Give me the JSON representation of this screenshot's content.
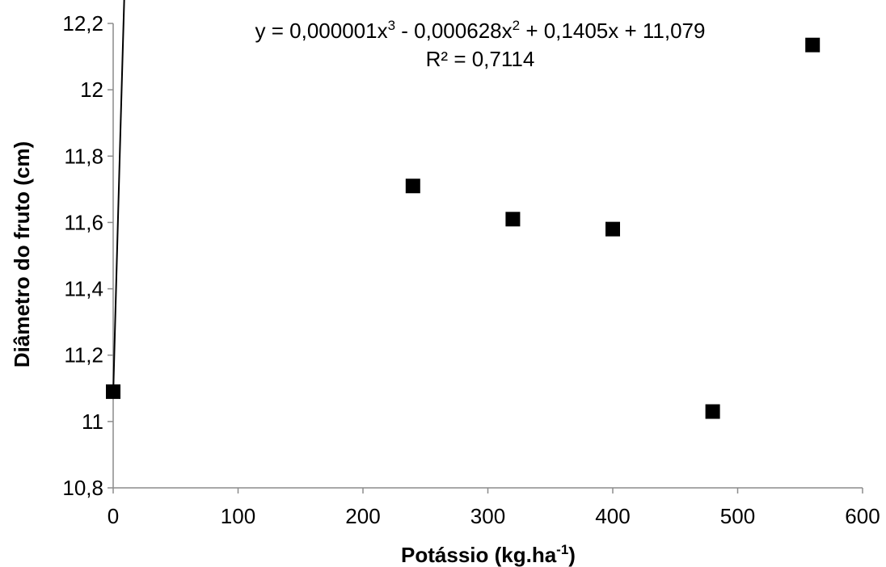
{
  "chart_data": {
    "type": "scatter",
    "xlabel": "Potássio (kg.ha",
    "xlabel_sup": "-1",
    "xlabel_end": ")",
    "ylabel": "Diâmetro do fruto (cm)",
    "xlim": [
      0,
      600
    ],
    "ylim": [
      10.8,
      12.2
    ],
    "x_ticks": [
      0,
      100,
      200,
      300,
      400,
      500,
      600
    ],
    "x_tick_labels": [
      "0",
      "100",
      "200",
      "300",
      "400",
      "500",
      "600"
    ],
    "y_ticks": [
      10.8,
      11.0,
      11.2,
      11.4,
      11.6,
      11.8,
      12.0,
      12.2
    ],
    "y_tick_labels": [
      "10,8",
      "11",
      "11,2",
      "11,4",
      "11,6",
      "11,8",
      "12",
      "12,2"
    ],
    "grid": false,
    "points": [
      {
        "x": 0,
        "y": 11.09
      },
      {
        "x": 240,
        "y": 11.71
      },
      {
        "x": 320,
        "y": 11.61
      },
      {
        "x": 400,
        "y": 11.58
      },
      {
        "x": 480,
        "y": 11.03
      },
      {
        "x": 560,
        "y": 12.135
      }
    ],
    "trendline": {
      "type": "polynomial",
      "order": 3,
      "coefficients": [
        1e-06,
        -0.000628,
        0.1405,
        11.079
      ],
      "x_range": [
        0,
        560
      ],
      "equation": {
        "t1": "y = 0,000001x",
        "s1": "3",
        "t2": " - 0,000628x",
        "s2": "2",
        "t3": " + 0,1405x + 11,079"
      },
      "r2_label": "R² = 0,7114"
    }
  }
}
